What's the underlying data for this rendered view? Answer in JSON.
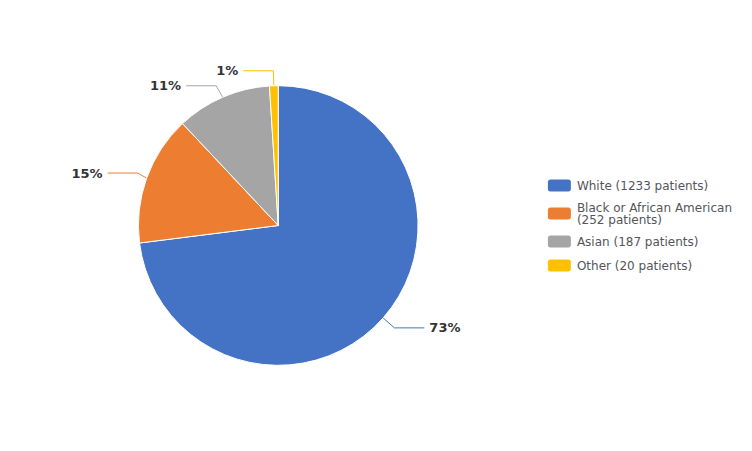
{
  "chart_data": {
    "type": "pie",
    "categories": [
      "White (1233 patients)",
      "Black or African American\n(252 patients)",
      "Asian (187 patients)",
      "Other (20 patients)"
    ],
    "values": [
      73,
      15,
      11,
      1
    ],
    "value_labels": [
      "73%",
      "15%",
      "11%",
      "1%"
    ],
    "colors": [
      "#4472C4",
      "#ED7D31",
      "#A5A5A5",
      "#FFC000"
    ],
    "data_labels": true,
    "legend": "right"
  }
}
